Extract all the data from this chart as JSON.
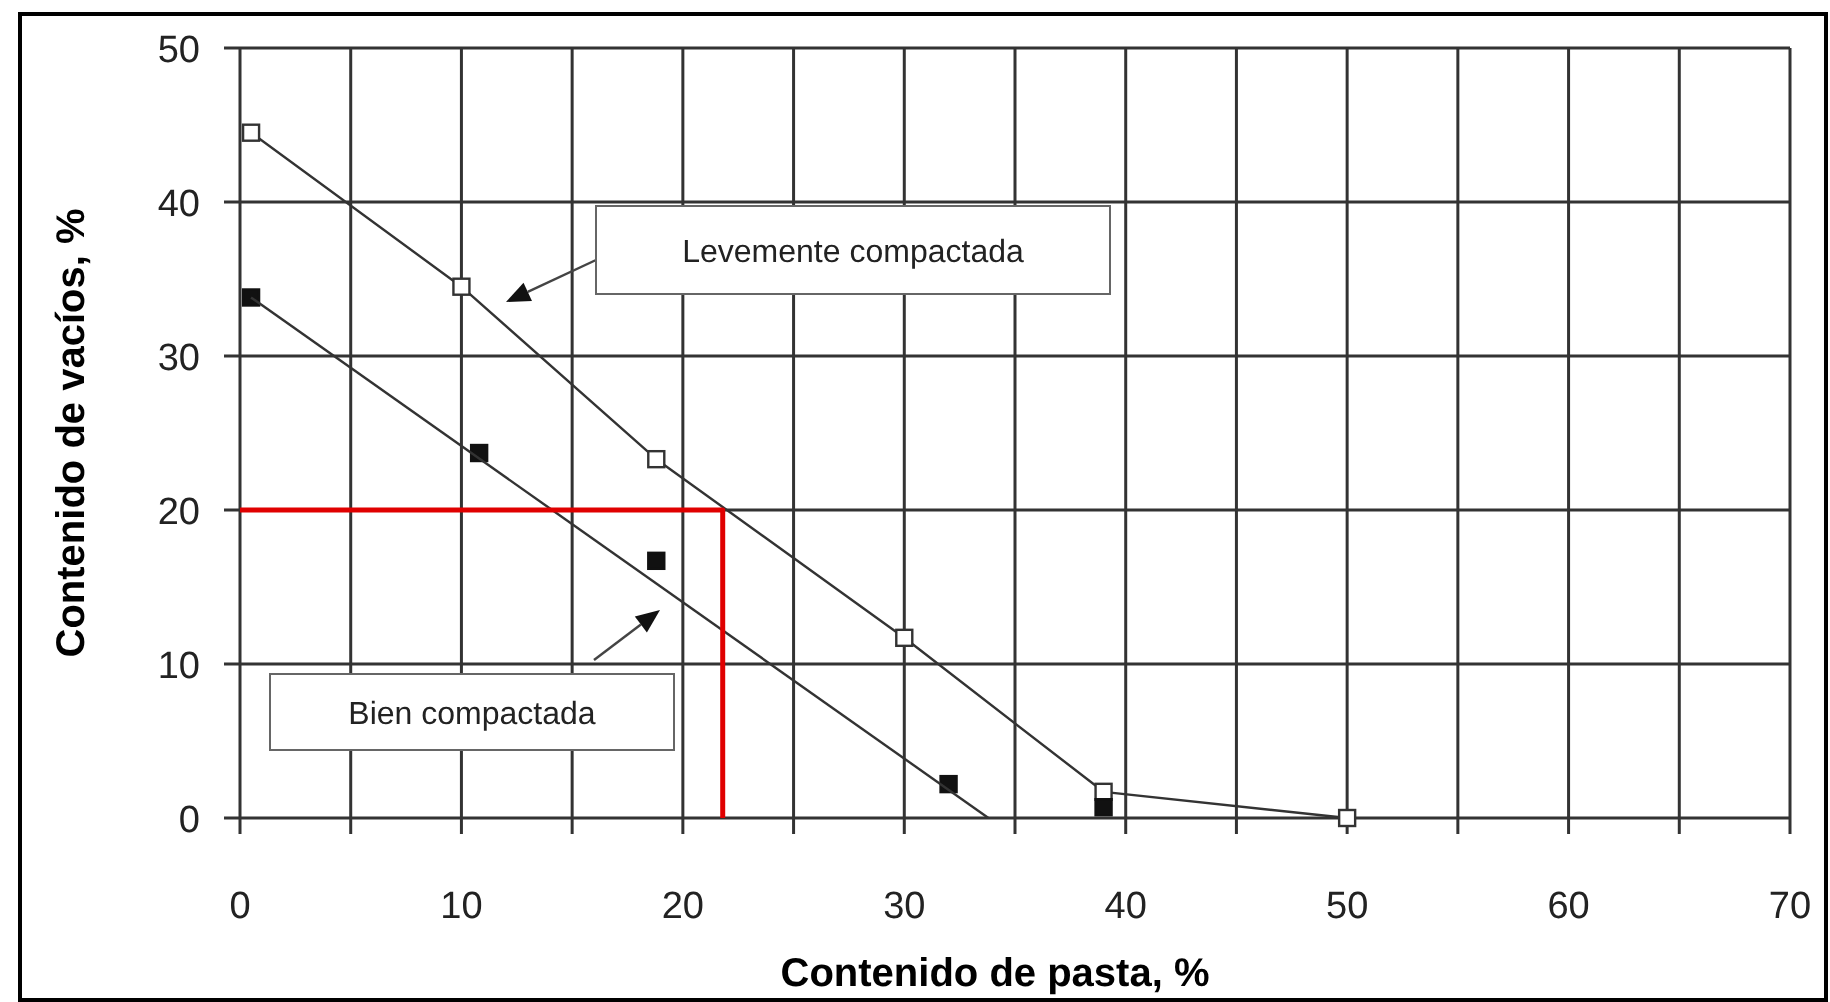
{
  "chart_data": {
    "type": "line",
    "xlabel": "Contenido de pasta, %",
    "ylabel": "Contenido de vacíos, %",
    "xlim": [
      0,
      70
    ],
    "xticks": [
      0,
      10,
      20,
      30,
      40,
      50,
      60,
      70
    ],
    "ylim": [
      0,
      50
    ],
    "yticks": [
      0,
      10,
      20,
      30,
      40,
      50
    ],
    "grid": true,
    "series": [
      {
        "marker": "square",
        "color": "#333333",
        "x": [
          0.5,
          10,
          18.8,
          30,
          39,
          50
        ],
        "values": [
          44.5,
          34.5,
          23.3,
          11.7,
          1.7,
          0
        ]
      },
      {
        "type": "scatter",
        "marker": "square",
        "color": "#111111",
        "x": [
          0.5,
          10.8,
          18.8,
          32,
          39
        ],
        "values": [
          33.8,
          23.7,
          16.7,
          2.2,
          0.7
        ]
      },
      {
        "marker": "none",
        "color": "#333333",
        "x": [
          0.5,
          33.8
        ],
        "values": [
          33.8,
          0
        ]
      },
      {
        "type": "line",
        "marker": "none",
        "color": "#e00000",
        "x": [
          0,
          21.8,
          21.8
        ],
        "values": [
          20,
          20,
          0
        ]
      }
    ],
    "annotations": [
      "Levemente compactada",
      "Bien compactada"
    ]
  }
}
